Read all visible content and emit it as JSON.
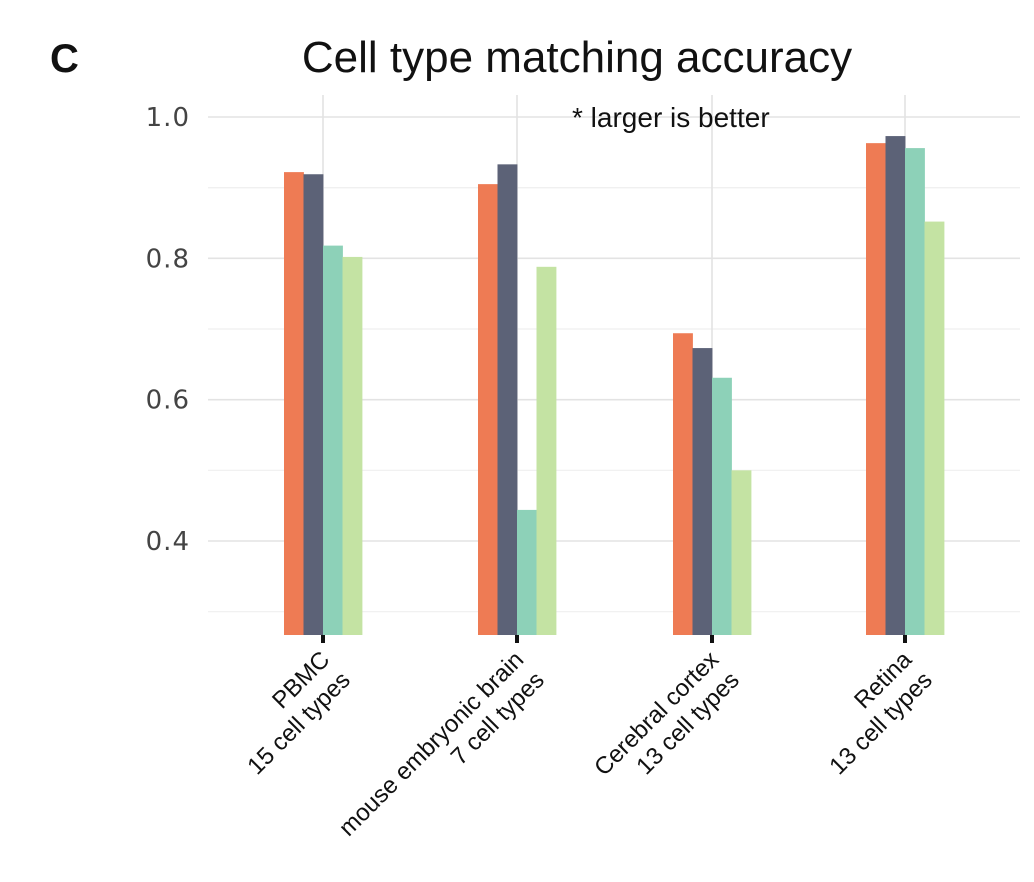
{
  "panel_label": "C",
  "chart_data": {
    "type": "bar",
    "title": "Cell type matching accuracy",
    "annotation": "* larger is better",
    "xlabel": "",
    "ylabel": "",
    "ylim": [
      0.27,
      1.03
    ],
    "yticks": [
      0.4,
      0.6,
      0.8,
      1.0
    ],
    "ytick_labels": [
      "0.4",
      "0.6",
      "0.8",
      "1.0"
    ],
    "grid": true,
    "legend": "none",
    "categories": [
      [
        "PBMC",
        "15 cell types"
      ],
      [
        "mouse embryonic brain",
        "7 cell types"
      ],
      [
        "Cerebral cortex",
        "13 cell types"
      ],
      [
        "Retina",
        "13 cell types"
      ]
    ],
    "series": [
      {
        "color": "#ee7b54",
        "values": [
          0.922,
          0.905,
          0.694,
          0.963
        ]
      },
      {
        "color": "#5c6277",
        "values": [
          0.919,
          0.933,
          0.673,
          0.973
        ]
      },
      {
        "color": "#8dd1b8",
        "values": [
          0.818,
          0.444,
          0.631,
          0.956
        ]
      },
      {
        "color": "#c4e3a3",
        "values": [
          0.802,
          0.788,
          0.5,
          0.852
        ]
      }
    ]
  }
}
